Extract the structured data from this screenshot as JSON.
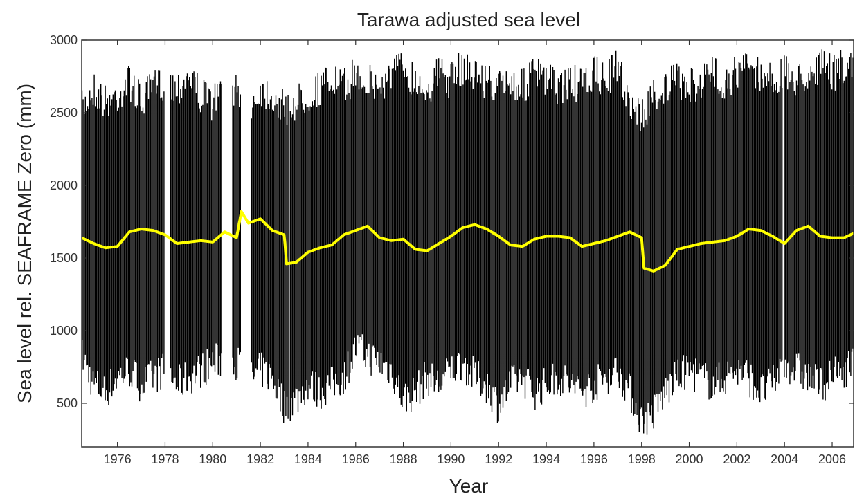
{
  "chart_data": {
    "type": "line",
    "title": "Tarawa adjusted sea level",
    "xlabel": "Year",
    "ylabel": "Sea level rel. SEAFRAME Zero (mm)",
    "xlim": [
      1974.5,
      2006.9
    ],
    "ylim": [
      200,
      3000
    ],
    "x_ticks": [
      1976,
      1978,
      1980,
      1982,
      1984,
      1986,
      1988,
      1990,
      1992,
      1994,
      1996,
      1998,
      2000,
      2002,
      2004,
      2006
    ],
    "y_ticks": [
      500,
      1000,
      1500,
      2000,
      2500,
      3000
    ],
    "grid": false,
    "legend": "none",
    "data_gaps": [
      [
        1978.0,
        1978.2
      ],
      [
        1980.4,
        1980.8
      ],
      [
        1981.2,
        1981.6
      ],
      [
        1983.2,
        1983.25
      ],
      [
        2003.9,
        2003.95
      ]
    ],
    "series": [
      {
        "role": "hourly",
        "color": "#000000",
        "x": [
          1974.5,
          1975.0,
          1975.5,
          1976.0,
          1976.5,
          1977.0,
          1977.5,
          1978.0,
          1978.5,
          1979.0,
          1979.5,
          1980.0,
          1980.8,
          1981.0,
          1981.8,
          1982.0,
          1982.5,
          1983.0,
          1983.5,
          1984.0,
          1984.5,
          1985.0,
          1985.5,
          1986.0,
          1986.5,
          1987.0,
          1987.5,
          1988.0,
          1988.5,
          1989.0,
          1989.5,
          1990.0,
          1990.5,
          1991.0,
          1991.5,
          1992.0,
          1992.5,
          1993.0,
          1993.5,
          1994.0,
          1994.5,
          1995.0,
          1995.5,
          1996.0,
          1996.5,
          1997.0,
          1997.5,
          1998.0,
          1998.5,
          1999.0,
          1999.5,
          2000.0,
          2000.5,
          2001.0,
          2001.5,
          2002.0,
          2002.5,
          2003.0,
          2003.5,
          2004.0,
          2004.5,
          2005.0,
          2005.5,
          2006.0,
          2006.5,
          2006.9
        ],
        "max": [
          2650,
          2800,
          2700,
          2750,
          2850,
          2700,
          2800,
          2850,
          2800,
          2900,
          2750,
          2700,
          2850,
          2750,
          2700,
          2800,
          2750,
          2650,
          2700,
          2750,
          2800,
          2850,
          2800,
          2900,
          2850,
          2800,
          2900,
          2950,
          2850,
          2800,
          2900,
          2850,
          2950,
          2900,
          2850,
          2800,
          2850,
          2800,
          2900,
          2850,
          2800,
          2850,
          2800,
          2900,
          2850,
          2950,
          2700,
          2600,
          2750,
          2800,
          2850,
          2800,
          2850,
          2900,
          2850,
          2900,
          2950,
          2900,
          2850,
          2900,
          2850,
          2900,
          2950,
          2900,
          2950,
          2900
        ],
        "min": [
          700,
          500,
          450,
          550,
          600,
          500,
          550,
          600,
          500,
          550,
          600,
          650,
          700,
          650,
          550,
          600,
          550,
          350,
          400,
          500,
          450,
          500,
          550,
          750,
          700,
          650,
          600,
          400,
          450,
          550,
          500,
          600,
          650,
          550,
          500,
          350,
          500,
          550,
          450,
          500,
          550,
          500,
          450,
          500,
          550,
          600,
          450,
          250,
          300,
          450,
          550,
          600,
          550,
          500,
          550,
          600,
          550,
          450,
          500,
          650,
          600,
          550,
          500,
          550,
          600,
          650
        ]
      },
      {
        "role": "monthly mean",
        "color": "#ffff00",
        "x": [
          1974.5,
          1975.0,
          1975.5,
          1976.0,
          1976.5,
          1977.0,
          1977.5,
          1978.0,
          1978.5,
          1979.0,
          1979.5,
          1980.0,
          1980.5,
          1981.0,
          1981.2,
          1981.5,
          1982.0,
          1982.5,
          1983.0,
          1983.1,
          1983.5,
          1984.0,
          1984.5,
          1985.0,
          1985.5,
          1986.0,
          1986.5,
          1987.0,
          1987.5,
          1988.0,
          1988.5,
          1989.0,
          1989.5,
          1990.0,
          1990.5,
          1991.0,
          1991.5,
          1992.0,
          1992.5,
          1993.0,
          1993.5,
          1994.0,
          1994.5,
          1995.0,
          1995.5,
          1996.0,
          1996.5,
          1997.0,
          1997.5,
          1998.0,
          1998.1,
          1998.5,
          1999.0,
          1999.5,
          2000.0,
          2000.5,
          2001.0,
          2001.5,
          2002.0,
          2002.5,
          2003.0,
          2003.5,
          2004.0,
          2004.5,
          2005.0,
          2005.5,
          2006.0,
          2006.5,
          2006.9
        ],
        "values": [
          1640,
          1600,
          1570,
          1580,
          1680,
          1700,
          1690,
          1660,
          1600,
          1610,
          1620,
          1610,
          1680,
          1640,
          1820,
          1740,
          1770,
          1690,
          1660,
          1460,
          1470,
          1540,
          1570,
          1590,
          1660,
          1690,
          1720,
          1640,
          1620,
          1630,
          1560,
          1550,
          1600,
          1650,
          1710,
          1730,
          1700,
          1650,
          1590,
          1580,
          1630,
          1650,
          1650,
          1640,
          1580,
          1600,
          1620,
          1650,
          1680,
          1640,
          1430,
          1410,
          1450,
          1560,
          1580,
          1600,
          1610,
          1620,
          1650,
          1700,
          1690,
          1650,
          1600,
          1690,
          1720,
          1650,
          1640,
          1640,
          1670
        ]
      }
    ]
  }
}
